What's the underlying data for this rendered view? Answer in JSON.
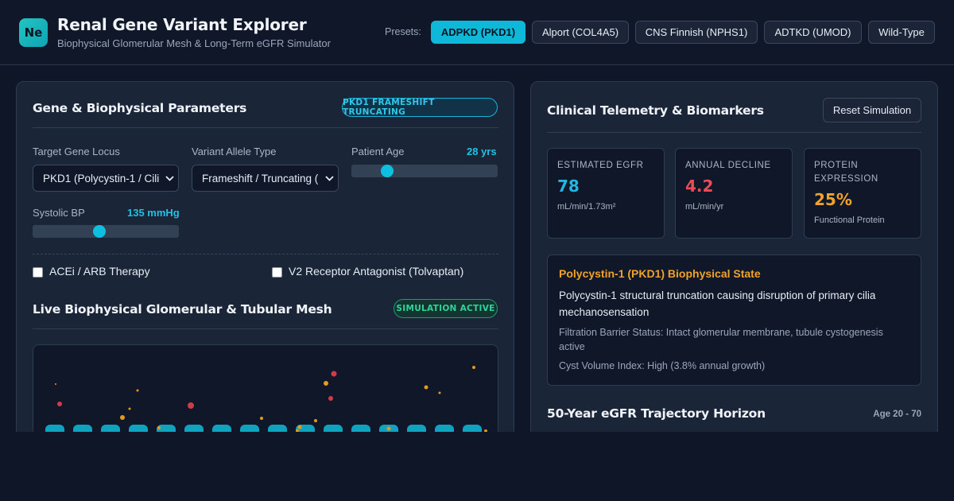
{
  "header": {
    "logo_text": "Ne",
    "title": "Renal Gene Variant Explorer",
    "subtitle": "Biophysical Glomerular Mesh & Long-Term eGFR Simulator",
    "presets_label": "Presets:",
    "presets": [
      {
        "label": "ADPKD (PKD1)",
        "active": true
      },
      {
        "label": "Alport (COL4A5)",
        "active": false
      },
      {
        "label": "CNS Finnish (NPHS1)",
        "active": false
      },
      {
        "label": "ADTKD (UMOD)",
        "active": false
      },
      {
        "label": "Wild-Type",
        "active": false
      }
    ]
  },
  "params": {
    "title": "Gene & Biophysical Parameters",
    "badge": "PKD1 FRAMESHIFT TRUNCATING",
    "gene_locus_label": "Target Gene Locus",
    "gene_locus_value": "PKD1 (Polycystin-1 / Cili",
    "variant_label": "Variant Allele Type",
    "variant_value": "Frameshift / Truncating (",
    "age_label": "Patient Age",
    "age_value": "28 yrs",
    "age_fraction": 0.22,
    "bp_label": "Systolic BP",
    "bp_value": "135 mmHg",
    "bp_fraction": 0.45,
    "acei_label": "ACEi / ARB Therapy",
    "acei_checked": false,
    "tolvaptan_label": "V2 Receptor Antagonist (Tolvaptan)",
    "tolvaptan_checked": false
  },
  "mesh": {
    "title": "Live Biophysical Glomerular & Tubular Mesh",
    "badge": "SIMULATION ACTIVE",
    "tubule_color": "#0fa3c0",
    "red_particle_color": "#d4394a",
    "amber_particle_color": "#e39a1e"
  },
  "telemetry": {
    "title": "Clinical Telemetry & Biomarkers",
    "reset_label": "Reset Simulation",
    "metrics": [
      {
        "label": "Estimated eGFR",
        "value": "78",
        "unit": "mL/min/1.73m²",
        "color": "#22b7e0"
      },
      {
        "label": "Annual Decline",
        "value": "4.2",
        "unit": "mL/min/yr",
        "color": "#ec4a55"
      },
      {
        "label": "Protein Expression",
        "value": "25%",
        "unit": "Functional Protein",
        "color": "#f0a32a"
      }
    ],
    "state": {
      "title": "Polycystin-1 (PKD1) Biophysical State",
      "description": "Polycystin-1 structural truncation causing disruption of primary cilia mechanosensation",
      "filtration": "Filtration Barrier Status: Intact glomerular membrane, tubule cystogenesis active",
      "cyst_index": "Cyst Volume Index: High (3.8% annual growth)"
    },
    "horizon_title": "50-Year eGFR Trajectory Horizon",
    "horizon_range": "Age 20 - 70"
  }
}
